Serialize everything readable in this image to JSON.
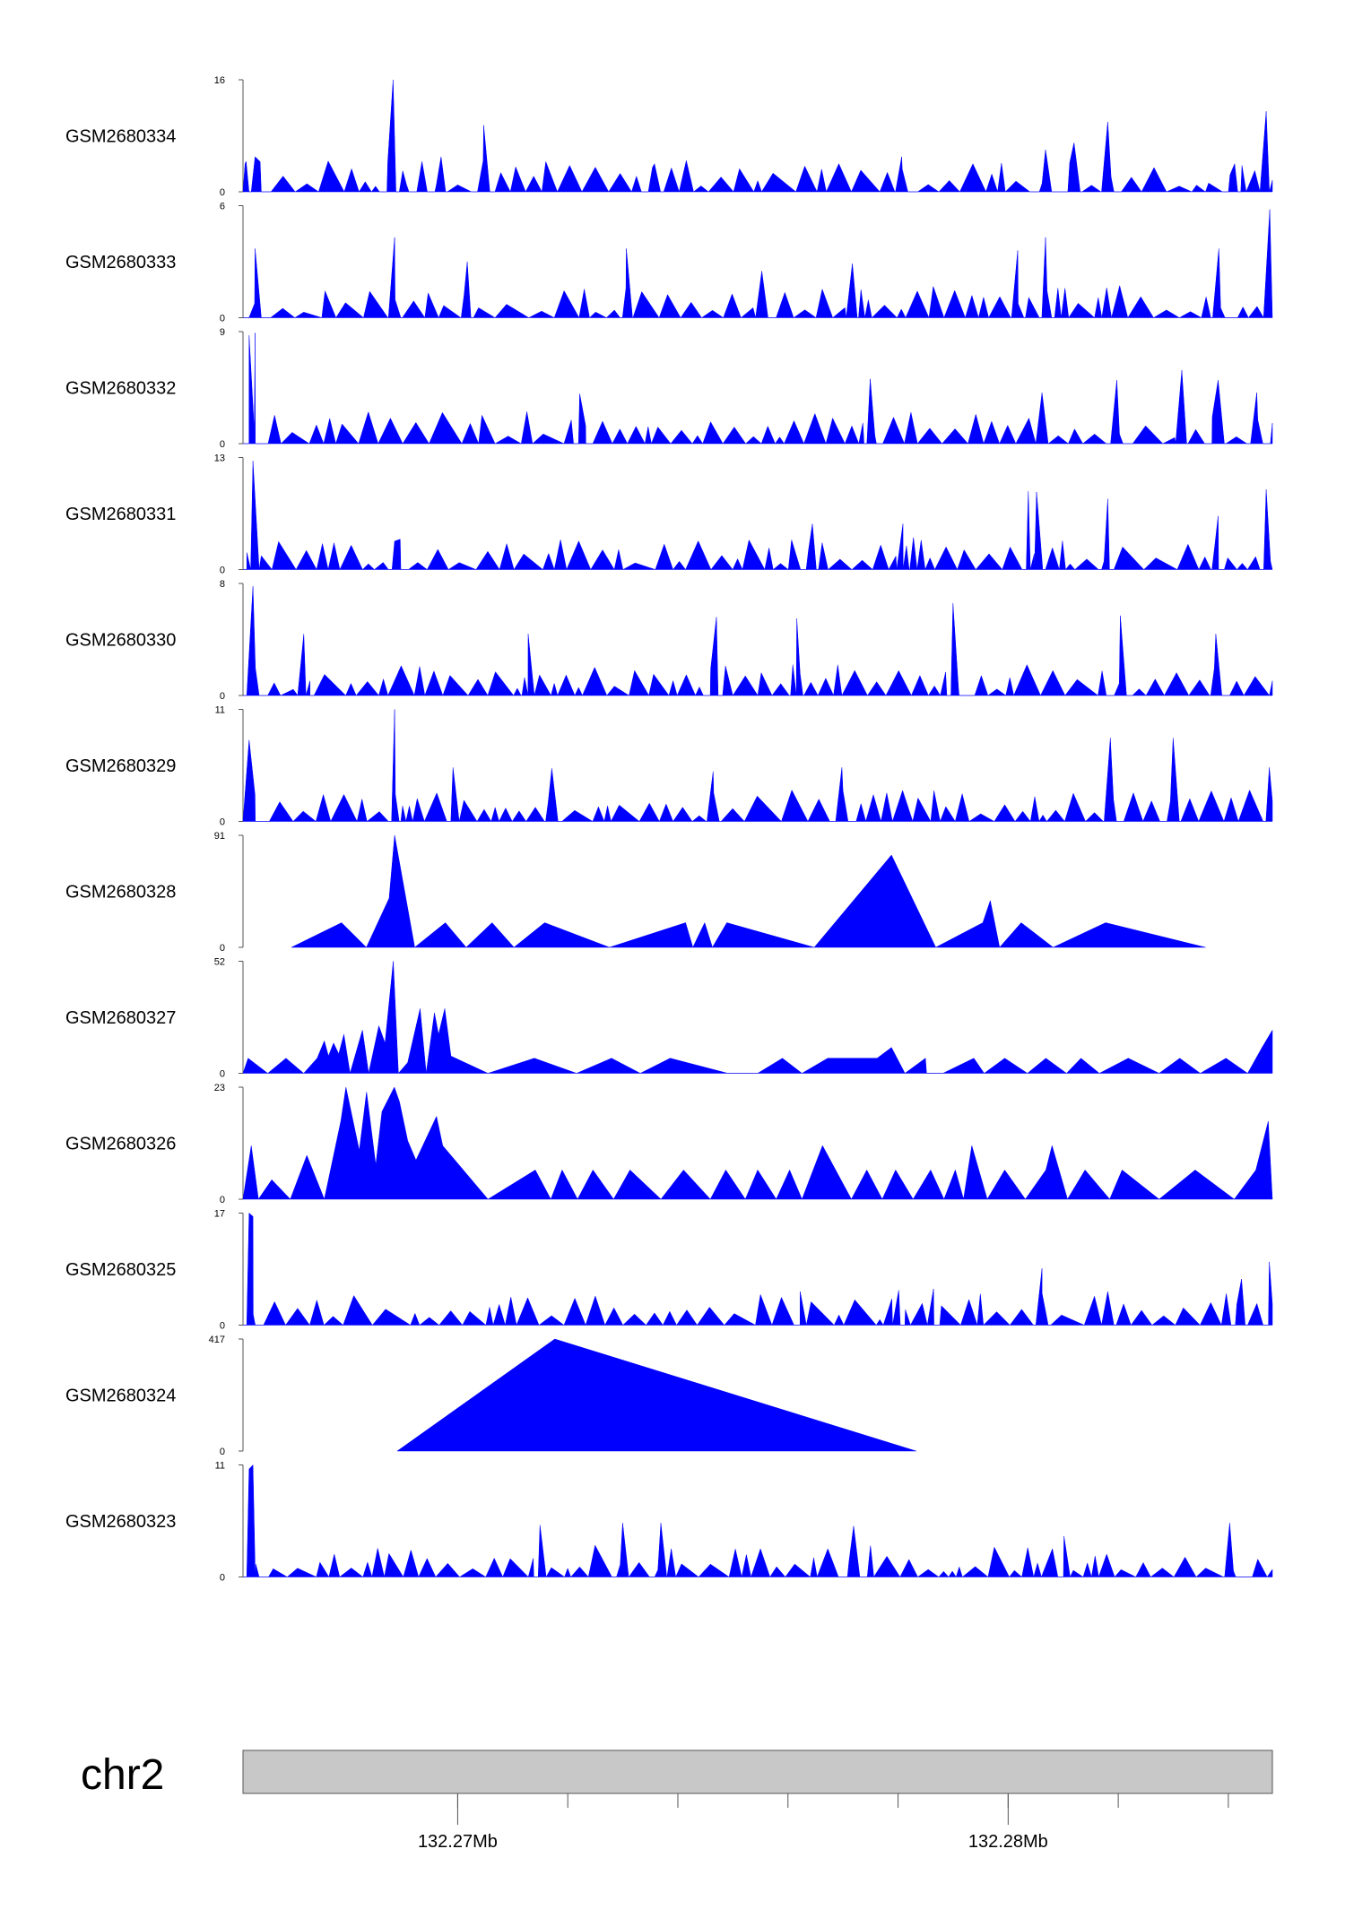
{
  "colors": {
    "fill": "#0000ff",
    "axis": "#555555",
    "ideogram": "#c8c8c8",
    "ideogram_border": "#555555"
  },
  "chart_data": {
    "type": "area",
    "chromosome": "chr2",
    "x_range_mb": [
      132.2661,
      132.2848
    ],
    "position_labels": [
      {
        "value": 132.27,
        "label": "132.27Mb"
      },
      {
        "value": 132.28,
        "label": "132.28Mb"
      }
    ],
    "minor_ticks": [
      132.27,
      132.272,
      132.274,
      132.276,
      132.278,
      132.28,
      132.282,
      132.284
    ],
    "tracks": [
      {
        "name": "GSM2680334",
        "ymax": 16,
        "ymax_label": "16",
        "ymin_label": "0",
        "dense": true,
        "seed": 11,
        "peaks": [
          [
            0.002,
            4
          ],
          [
            0.0118,
            5
          ],
          [
            0.1458,
            16
          ],
          [
            0.1552,
            3
          ],
          [
            0.1924,
            5
          ],
          [
            0.2338,
            9.5
          ],
          [
            0.3997,
            4
          ],
          [
            0.6399,
            5
          ],
          [
            0.7796,
            6
          ],
          [
            0.8073,
            7
          ],
          [
            0.8401,
            10
          ],
          [
            0.9633,
            4
          ],
          [
            0.994,
            11.5
          ]
        ]
      },
      {
        "name": "GSM2680333",
        "ymax": 6,
        "ymax_label": "6",
        "ymin_label": "0",
        "dense": true,
        "seed": 23,
        "peaks": [
          [
            0.0118,
            3.7
          ],
          [
            0.1473,
            4.3
          ],
          [
            0.2179,
            3
          ],
          [
            0.3724,
            3.7
          ],
          [
            0.504,
            2.5
          ],
          [
            0.592,
            2.9
          ],
          [
            0.7526,
            3.6
          ],
          [
            0.7796,
            4.3
          ],
          [
            0.948,
            3.7
          ],
          [
            0.9975,
            5.8
          ]
        ]
      },
      {
        "name": "GSM2680332",
        "ymax": 9,
        "ymax_label": "9",
        "ymin_label": "0",
        "dense": true,
        "seed": 37,
        "peaks": [
          [
            0.0059,
            8.7
          ],
          [
            0.0118,
            8.9
          ],
          [
            0.3271,
            4
          ],
          [
            0.6093,
            5.2
          ],
          [
            0.7762,
            4.1
          ],
          [
            0.8489,
            5.1
          ],
          [
            0.912,
            5.9
          ],
          [
            0.9473,
            5.1
          ],
          [
            0.9848,
            4.1
          ]
        ]
      },
      {
        "name": "GSM2680331",
        "ymax": 13,
        "ymax_label": "13",
        "ymin_label": "0",
        "dense": true,
        "seed": 41,
        "peaks": [
          [
            0.0097,
            12.6
          ],
          [
            0.1473,
            3.3
          ],
          [
            0.5531,
            5.3
          ],
          [
            0.6411,
            5.3
          ],
          [
            0.7629,
            9.1
          ],
          [
            0.7709,
            9
          ],
          [
            0.8401,
            8.2
          ],
          [
            0.9473,
            6.2
          ],
          [
            0.994,
            9.3
          ]
        ]
      },
      {
        "name": "GSM2680330",
        "ymax": 8,
        "ymax_label": "8",
        "ymin_label": "0",
        "dense": true,
        "seed": 53,
        "peaks": [
          [
            0.0097,
            7.8
          ],
          [
            0.0591,
            4.4
          ],
          [
            0.277,
            4.4
          ],
          [
            0.4599,
            5.6
          ],
          [
            0.538,
            5.5
          ],
          [
            0.6897,
            6.6
          ],
          [
            0.8523,
            5.7
          ],
          [
            0.945,
            4.4
          ]
        ]
      },
      {
        "name": "GSM2680329",
        "ymax": 11,
        "ymax_label": "11",
        "ymin_label": "0",
        "dense": true,
        "seed": 67,
        "peaks": [
          [
            0.0059,
            8
          ],
          [
            0.1473,
            11
          ],
          [
            0.204,
            5.3
          ],
          [
            0.3,
            5.2
          ],
          [
            0.4567,
            4.9
          ],
          [
            0.5818,
            5.3
          ],
          [
            0.8426,
            8.2
          ],
          [
            0.9036,
            8.2
          ],
          [
            0.997,
            5.3
          ]
        ]
      },
      {
        "name": "GSM2680328",
        "ymax": 91,
        "ymax_label": "91",
        "ymin_label": "0",
        "dense": false,
        "seed": 0,
        "points": [
          [
            0.047,
            0
          ],
          [
            0.0957,
            20
          ],
          [
            0.1199,
            0
          ],
          [
            0.142,
            40
          ],
          [
            0.1473,
            91
          ],
          [
            0.1668,
            0
          ],
          [
            0.1966,
            20
          ],
          [
            0.2168,
            0
          ],
          [
            0.242,
            20
          ],
          [
            0.2632,
            0
          ],
          [
            0.293,
            20
          ],
          [
            0.356,
            0
          ],
          [
            0.43,
            20
          ],
          [
            0.437,
            0
          ],
          [
            0.4485,
            20
          ],
          [
            0.456,
            0
          ],
          [
            0.47,
            20
          ],
          [
            0.555,
            0
          ],
          [
            0.63,
            75
          ],
          [
            0.673,
            0
          ],
          [
            0.7187,
            20
          ],
          [
            0.726,
            38
          ],
          [
            0.735,
            0
          ],
          [
            0.756,
            20
          ],
          [
            0.787,
            0
          ],
          [
            0.838,
            20
          ],
          [
            0.935,
            0
          ]
        ]
      },
      {
        "name": "GSM2680327",
        "ymax": 52,
        "ymax_label": "52",
        "ymin_label": "0",
        "dense": false,
        "seed": 0,
        "points": [
          [
            0.0,
            0
          ],
          [
            0.005,
            7
          ],
          [
            0.024,
            0
          ],
          [
            0.0417,
            7
          ],
          [
            0.059,
            0
          ],
          [
            0.072,
            7
          ],
          [
            0.079,
            15
          ],
          [
            0.083,
            8
          ],
          [
            0.088,
            14
          ],
          [
            0.093,
            9
          ],
          [
            0.098,
            18
          ],
          [
            0.104,
            0
          ],
          [
            0.116,
            20
          ],
          [
            0.122,
            0
          ],
          [
            0.132,
            22
          ],
          [
            0.138,
            14
          ],
          [
            0.146,
            52
          ],
          [
            0.151,
            0
          ],
          [
            0.16,
            5
          ],
          [
            0.172,
            30
          ],
          [
            0.178,
            0
          ],
          [
            0.186,
            28
          ],
          [
            0.19,
            18
          ],
          [
            0.196,
            30
          ],
          [
            0.202,
            8
          ],
          [
            0.238,
            0
          ],
          [
            0.283,
            7
          ],
          [
            0.324,
            0
          ],
          [
            0.358,
            7
          ],
          [
            0.386,
            0
          ],
          [
            0.415,
            7
          ],
          [
            0.471,
            0
          ],
          [
            0.524,
            7
          ],
          [
            0.543,
            0
          ],
          [
            0.568,
            7
          ],
          [
            0.616,
            7
          ],
          [
            0.5,
            0
          ],
          [
            0.616,
            7
          ],
          [
            0.63,
            12
          ],
          [
            0.664,
            0
          ],
          [
            0.63,
            12
          ],
          [
            0.643,
            0
          ],
          [
            0.663,
            7
          ],
          [
            0.68,
            0
          ],
          [
            0.71,
            7
          ],
          [
            0.72,
            0
          ],
          [
            0.74,
            7
          ],
          [
            0.762,
            0
          ],
          [
            0.78,
            7
          ],
          [
            0.8,
            0
          ],
          [
            0.814,
            7
          ],
          [
            0.832,
            0
          ],
          [
            0.86,
            7
          ],
          [
            0.89,
            0
          ],
          [
            0.91,
            7
          ],
          [
            0.93,
            0
          ],
          [
            0.955,
            7
          ],
          [
            0.976,
            0
          ],
          [
            0.99,
            12
          ],
          [
            1.0,
            20
          ]
        ]
      },
      {
        "name": "GSM2680326",
        "ymax": 23,
        "ymax_label": "23",
        "ymin_label": "0",
        "dense": false,
        "seed": 0,
        "points": [
          [
            0.0,
            0
          ],
          [
            0.008,
            11
          ],
          [
            0.015,
            0
          ],
          [
            0.028,
            4
          ],
          [
            0.046,
            0
          ],
          [
            0.062,
            9
          ],
          [
            0.079,
            0
          ],
          [
            0.095,
            16
          ],
          [
            0.1,
            23
          ],
          [
            0.107,
            16
          ],
          [
            0.113,
            10
          ],
          [
            0.12,
            22
          ],
          [
            0.129,
            7
          ],
          [
            0.135,
            18
          ],
          [
            0.147,
            23
          ],
          [
            0.152,
            20
          ],
          [
            0.16,
            12
          ],
          [
            0.168,
            8
          ],
          [
            0.188,
            17
          ],
          [
            0.194,
            11
          ],
          [
            0.238,
            0
          ],
          [
            0.284,
            6
          ],
          [
            0.299,
            0
          ],
          [
            0.31,
            6
          ],
          [
            0.325,
            0
          ],
          [
            0.34,
            6
          ],
          [
            0.36,
            0
          ],
          [
            0.376,
            6
          ],
          [
            0.406,
            0
          ],
          [
            0.428,
            6
          ],
          [
            0.454,
            0
          ],
          [
            0.469,
            6
          ],
          [
            0.488,
            0
          ],
          [
            0.5,
            6
          ],
          [
            0.518,
            0
          ],
          [
            0.531,
            6
          ],
          [
            0.543,
            0
          ],
          [
            0.563,
            11
          ],
          [
            0.591,
            0
          ],
          [
            0.606,
            6
          ],
          [
            0.621,
            0
          ],
          [
            0.634,
            6
          ],
          [
            0.651,
            0
          ],
          [
            0.668,
            6
          ],
          [
            0.681,
            0
          ],
          [
            0.692,
            6
          ],
          [
            0.7,
            0
          ],
          [
            0.708,
            11
          ],
          [
            0.723,
            0
          ],
          [
            0.74,
            6
          ],
          [
            0.76,
            0
          ],
          [
            0.78,
            6
          ],
          [
            0.786,
            11
          ],
          [
            0.801,
            0
          ],
          [
            0.818,
            6
          ],
          [
            0.842,
            0
          ],
          [
            0.854,
            6
          ],
          [
            0.89,
            0
          ],
          [
            0.925,
            6
          ],
          [
            0.963,
            0
          ],
          [
            0.984,
            6
          ],
          [
            0.996,
            16
          ],
          [
            1.0,
            0
          ]
        ]
      },
      {
        "name": "GSM2680325",
        "ymax": 17,
        "ymax_label": "17",
        "ymin_label": "0",
        "dense": true,
        "seed": 79,
        "peaks": [
          [
            0.0059,
            17
          ],
          [
            0.0097,
            16.5
          ],
          [
            0.5413,
            5.1
          ],
          [
            0.637,
            5.3
          ],
          [
            0.6708,
            5.5
          ],
          [
            0.7762,
            8.6
          ],
          [
            0.8401,
            5.1
          ],
          [
            0.97,
            7
          ],
          [
            0.997,
            9.6
          ]
        ]
      },
      {
        "name": "GSM2680324",
        "ymax": 417,
        "ymax_label": "417",
        "ymin_label": "0",
        "dense": false,
        "seed": 0,
        "points": [
          [
            0.1498,
            0
          ],
          [
            0.3029,
            417
          ],
          [
            0.654,
            0
          ]
        ]
      },
      {
        "name": "GSM2680323",
        "ymax": 11,
        "ymax_label": "11",
        "ymin_label": "0",
        "dense": true,
        "seed": 97,
        "peaks": [
          [
            0.0059,
            10.6
          ],
          [
            0.0097,
            11
          ],
          [
            0.2885,
            5.1
          ],
          [
            0.3688,
            5.3
          ],
          [
            0.4059,
            5.3
          ],
          [
            0.5932,
            5
          ],
          [
            0.7976,
            4
          ],
          [
            0.9585,
            5.3
          ]
        ]
      }
    ]
  }
}
